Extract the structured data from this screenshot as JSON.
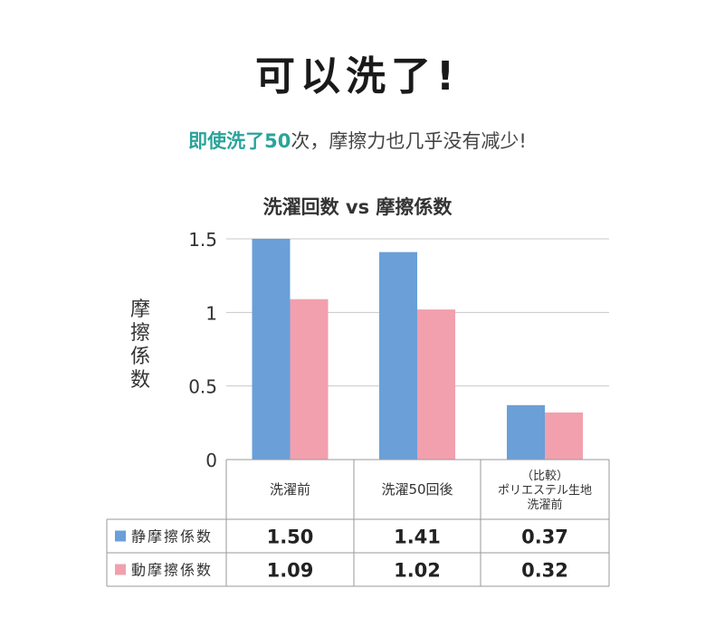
{
  "header": {
    "headline": "可以洗了!",
    "sub_accent": "即使洗了50",
    "sub_rest": "次，摩擦力也几乎没有减少!"
  },
  "chart_data": {
    "type": "bar",
    "title": "洗濯回数 vs 摩擦係数",
    "ylabel": "摩擦係数",
    "ylim": [
      0,
      1.5
    ],
    "yticks": [
      "0",
      "0.5",
      "1",
      "1.5"
    ],
    "grid": true,
    "categories": [
      [
        "洗濯前"
      ],
      [
        "洗濯50回後"
      ],
      [
        "（比較）",
        "ポリエステル生地",
        "洗濯前"
      ]
    ],
    "series": [
      {
        "name": "静摩擦係数",
        "values": [
          1.5,
          1.41,
          0.37
        ],
        "labels": [
          "1.50",
          "1.41",
          "0.37"
        ],
        "color": "#6a9fd8"
      },
      {
        "name": "動摩擦係数",
        "values": [
          1.09,
          1.02,
          0.32
        ],
        "labels": [
          "1.09",
          "1.02",
          "0.32"
        ],
        "color": "#f2a0ad"
      }
    ]
  }
}
